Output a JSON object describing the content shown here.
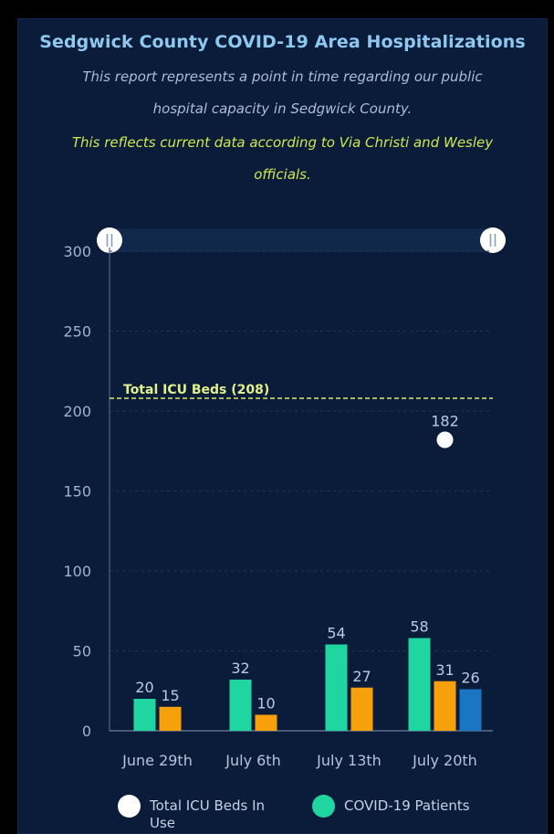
{
  "header": {
    "title": "Sedgwick County COVID-19 Area Hospitalizations",
    "description_line1": "This report represents a point in time regarding our public",
    "description_line2": "hospital capacity in Sedgwick County.",
    "note_line1": "This reflects current data according to Via Christi and Wesley",
    "note_line2": "officials."
  },
  "chart_data": {
    "type": "bar",
    "categories": [
      "June 29th",
      "July 6th",
      "July 13th",
      "July 20th"
    ],
    "series": [
      {
        "name": "COVID-19 Patients",
        "values": [
          20,
          32,
          54,
          58
        ],
        "color": "#1fd6a0"
      },
      {
        "name": "",
        "values": [
          15,
          10,
          27,
          31
        ],
        "color": "#f6a10c"
      },
      {
        "name": "",
        "values": [
          null,
          null,
          null,
          26
        ],
        "color": "#1a75c2"
      }
    ],
    "scatter_series": {
      "name": "Total ICU Beds In Use",
      "category": "July 20th",
      "value": 182,
      "color": "#ffffff"
    },
    "reference_line": {
      "label": "Total ICU Beds (208)",
      "value": 208,
      "color": "#d9e86a"
    },
    "ylim": [
      0,
      300
    ],
    "yticks": [
      0,
      50,
      100,
      150,
      200,
      250,
      300
    ],
    "grid": true,
    "legend_position": "bottom",
    "zoom_handle_icon": "pause-bars-icon"
  },
  "colors": {
    "background": "#0b1c3b",
    "title": "#8ec8ef",
    "description": "#a9bdd6",
    "note": "#cfe84e",
    "axis_text": "#9fb3cc",
    "data_label": "#b9cbe3"
  }
}
